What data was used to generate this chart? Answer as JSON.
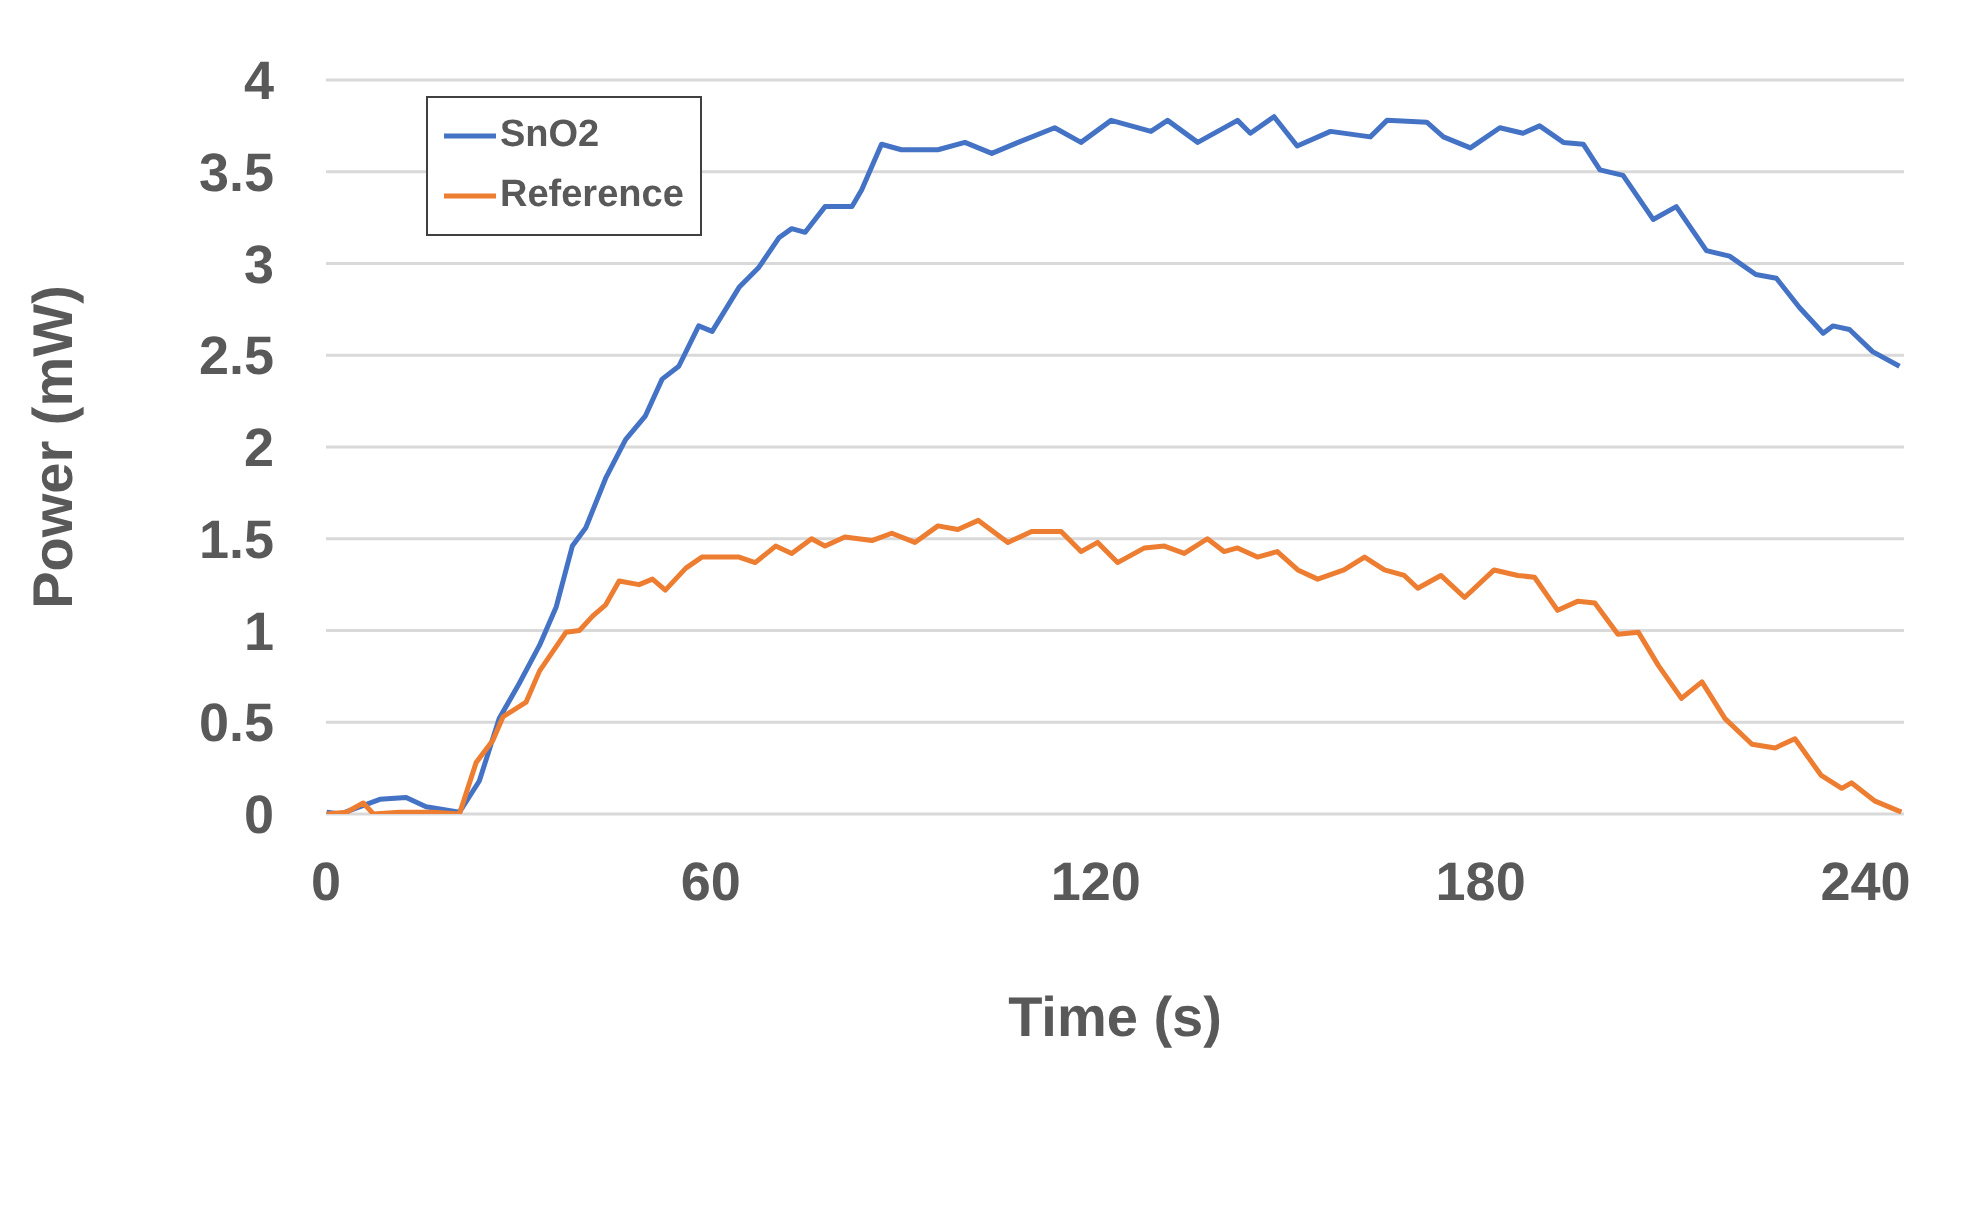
{
  "chart_data": {
    "type": "line",
    "xlabel": "Time (s)",
    "ylabel": "Power (mW)",
    "xlim": [
      0,
      246
    ],
    "xticks": [
      0,
      60,
      120,
      180,
      240
    ],
    "ylim": [
      0,
      4
    ],
    "yticks": [
      0,
      0.5,
      1,
      1.5,
      2,
      2.5,
      3,
      3.5,
      4
    ],
    "grid": "y",
    "legend": "top left",
    "marker": "none",
    "line_style": "solid",
    "series": [
      {
        "name": "SnO2",
        "color": "#4472c4",
        "x": [
          0.1,
          2.2,
          8.4,
          12.5,
          15.6,
          20.8,
          23.9,
          27.0,
          30.1,
          33.3,
          35.9,
          38.4,
          40.5,
          43.6,
          46.7,
          49.8,
          52.4,
          55.0,
          58.1,
          60.2,
          64.4,
          67.5,
          70.6,
          72.6,
          74.7,
          77.8,
          82.0,
          83.5,
          86.6,
          89.7,
          95.4,
          99.6,
          103.8,
          107.9,
          113.6,
          117.7,
          122.4,
          126.5,
          128.6,
          131.2,
          135.9,
          142.1,
          144.1,
          147.8,
          151.4,
          156.6,
          162.8,
          165.4,
          171.6,
          174.2,
          178.4,
          183.0,
          186.6,
          189.2,
          192.9,
          196.0,
          198.6,
          202.2,
          206.9,
          210.5,
          215.2,
          218.8,
          222.9,
          226.1,
          229.7,
          233.4,
          234.9,
          237.5,
          241.1,
          245.3
        ],
        "values": [
          0.01,
          0,
          0.08,
          0.09,
          0.04,
          0.01,
          0.18,
          0.52,
          0.71,
          0.92,
          1.13,
          1.46,
          1.56,
          1.83,
          2.04,
          2.17,
          2.37,
          2.44,
          2.66,
          2.63,
          2.87,
          2.98,
          3.14,
          3.19,
          3.17,
          3.31,
          3.31,
          3.4,
          3.65,
          3.62,
          3.62,
          3.66,
          3.6,
          3.66,
          3.74,
          3.66,
          3.78,
          3.74,
          3.72,
          3.78,
          3.66,
          3.78,
          3.71,
          3.8,
          3.64,
          3.72,
          3.69,
          3.78,
          3.77,
          3.69,
          3.63,
          3.74,
          3.71,
          3.75,
          3.66,
          3.65,
          3.51,
          3.48,
          3.24,
          3.31,
          3.07,
          3.04,
          2.94,
          2.92,
          2.76,
          2.62,
          2.66,
          2.64,
          2.52,
          2.44
        ]
      },
      {
        "name": "Reference",
        "color": "#ed7d31",
        "x": [
          0.1,
          3.2,
          5.8,
          7.4,
          11.5,
          16.7,
          20.8,
          23.4,
          26.0,
          27.6,
          31.2,
          33.3,
          37.4,
          39.5,
          41.6,
          43.6,
          45.7,
          48.8,
          50.9,
          52.9,
          56.1,
          58.6,
          64.4,
          66.9,
          70.1,
          72.6,
          75.7,
          77.8,
          80.9,
          85.1,
          88.2,
          91.8,
          95.4,
          98.5,
          101.7,
          106.3,
          110.0,
          114.6,
          117.7,
          120.3,
          123.4,
          127.6,
          130.7,
          133.8,
          137.4,
          140.0,
          142.1,
          145.2,
          148.3,
          151.5,
          154.6,
          158.7,
          161.9,
          165.0,
          168.1,
          170.2,
          173.8,
          177.5,
          182.1,
          185.8,
          188.4,
          192.0,
          195.2,
          197.8,
          201.4,
          204.6,
          207.7,
          211.3,
          214.5,
          218.1,
          222.3,
          225.9,
          229.0,
          233.1,
          236.3,
          237.8,
          241.5,
          245.6
        ],
        "values": [
          0,
          0.01,
          0.06,
          0,
          0.01,
          0.01,
          0,
          0.28,
          0.4,
          0.53,
          0.61,
          0.78,
          0.99,
          1.0,
          1.08,
          1.14,
          1.27,
          1.25,
          1.28,
          1.22,
          1.34,
          1.4,
          1.4,
          1.37,
          1.46,
          1.42,
          1.5,
          1.46,
          1.51,
          1.49,
          1.53,
          1.48,
          1.57,
          1.55,
          1.6,
          1.48,
          1.54,
          1.54,
          1.43,
          1.48,
          1.37,
          1.45,
          1.46,
          1.42,
          1.5,
          1.43,
          1.45,
          1.4,
          1.43,
          1.33,
          1.28,
          1.33,
          1.4,
          1.33,
          1.3,
          1.23,
          1.3,
          1.18,
          1.33,
          1.3,
          1.29,
          1.11,
          1.16,
          1.15,
          0.98,
          0.99,
          0.81,
          0.63,
          0.72,
          0.52,
          0.38,
          0.36,
          0.41,
          0.21,
          0.14,
          0.17,
          0.07,
          0.01
        ]
      }
    ]
  }
}
